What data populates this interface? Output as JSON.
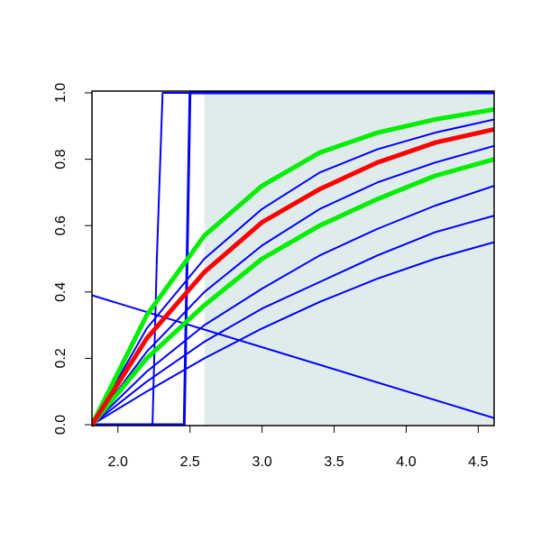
{
  "chart_data": {
    "type": "line",
    "xlim": [
      1.82,
      4.61
    ],
    "ylim": [
      0,
      1
    ],
    "xticks": [
      {
        "value": 2,
        "label": "2.0"
      },
      2.5,
      {
        "value": 3,
        "label": "3.0"
      },
      3.5,
      {
        "value": 4,
        "label": "4.0"
      },
      4.5
    ],
    "yticks": [
      {
        "value": 0,
        "label": "0.0"
      },
      0.2,
      0.4,
      0.6,
      0.8,
      {
        "value": 1,
        "label": "1.0"
      }
    ],
    "shaded_region": {
      "x": [
        2.6,
        4.61
      ],
      "y": [
        0,
        1
      ],
      "color": "#e0ecec"
    },
    "series": [
      {
        "color": "#0000ff",
        "line_width": 2,
        "x": [
          1.82,
          2.2,
          2.6,
          3.0,
          3.4,
          3.8,
          4.2,
          4.61
        ],
        "values": [
          0,
          0.1,
          0.2,
          0.29,
          0.37,
          0.44,
          0.5,
          0.55
        ]
      },
      {
        "color": "#0000ff",
        "line_width": 2,
        "x": [
          1.82,
          2.2,
          2.6,
          3.0,
          3.4,
          3.8,
          4.2,
          4.61
        ],
        "values": [
          0,
          0.13,
          0.25,
          0.35,
          0.43,
          0.51,
          0.58,
          0.63
        ]
      },
      {
        "color": "#0000ff",
        "line_width": 2,
        "x": [
          1.82,
          2.2,
          2.6,
          3.0,
          3.4,
          3.8,
          4.2,
          4.61
        ],
        "values": [
          0,
          0.16,
          0.3,
          0.41,
          0.51,
          0.59,
          0.66,
          0.72
        ]
      },
      {
        "color": "#0000ff",
        "line_width": 2,
        "x": [
          1.82,
          2.2,
          2.6,
          3.0,
          3.4,
          3.8,
          4.2,
          4.61
        ],
        "values": [
          0,
          0.22,
          0.4,
          0.54,
          0.65,
          0.73,
          0.79,
          0.84
        ]
      },
      {
        "color": "#0000ff",
        "line_width": 2,
        "x": [
          1.82,
          2.2,
          2.6,
          3.0,
          3.4,
          3.8,
          4.2,
          4.61
        ],
        "values": [
          0,
          0.29,
          0.5,
          0.65,
          0.76,
          0.83,
          0.88,
          0.92
        ]
      },
      {
        "color": "#0000ff",
        "line_width": 2,
        "x": [
          1.82,
          2.24,
          2.27,
          2.31,
          4.61
        ],
        "values": [
          0,
          0,
          0.5,
          1,
          1
        ]
      },
      {
        "color": "#0000ff",
        "line_width": 3,
        "x": [
          1.82,
          2.46,
          2.48,
          2.5,
          4.61
        ],
        "values": [
          0,
          0,
          0.5,
          1,
          1
        ]
      },
      {
        "color": "#0000ff",
        "line_width": 2,
        "x": [
          1.82,
          4.61
        ],
        "values": [
          0.39,
          0.02
        ]
      },
      {
        "color": "#00ee00",
        "line_width": 5,
        "x": [
          1.82,
          2.2,
          2.6,
          3.0,
          3.4,
          3.8,
          4.2,
          4.61
        ],
        "values": [
          0,
          0.2,
          0.36,
          0.5,
          0.6,
          0.68,
          0.75,
          0.8
        ]
      },
      {
        "color": "#00ee00",
        "line_width": 5,
        "x": [
          1.82,
          2.2,
          2.6,
          3.0,
          3.4,
          3.8,
          4.2,
          4.61
        ],
        "values": [
          0,
          0.33,
          0.57,
          0.72,
          0.82,
          0.88,
          0.92,
          0.95
        ]
      },
      {
        "color": "#ff0000",
        "line_width": 5,
        "x": [
          1.82,
          2.2,
          2.6,
          3.0,
          3.4,
          3.8,
          4.2,
          4.61
        ],
        "values": [
          0,
          0.26,
          0.46,
          0.61,
          0.71,
          0.79,
          0.85,
          0.89
        ]
      }
    ]
  }
}
